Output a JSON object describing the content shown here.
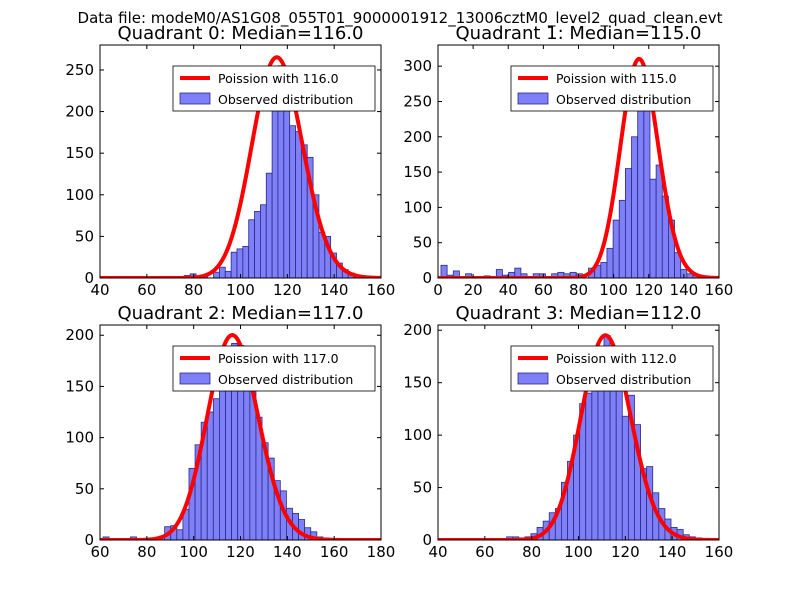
{
  "suptitle": "Data file: modeM0/AS1G08_055T01_9000001912_13006cztM0_level2_quad_clean.evt",
  "colors": {
    "bar_fill": "#7f7ff7",
    "bar_edge": "#2a2a8a",
    "curve": "#ff0000",
    "axis": "#000000"
  },
  "chart_data": [
    {
      "type": "bar",
      "title": "Quadrant 0: Median=116.0",
      "legend": [
        "Poission with 116.0",
        "Observed distribution"
      ],
      "legend_placement": "top-right",
      "xlim": [
        40,
        160
      ],
      "ylim": [
        0,
        280
      ],
      "xticks": [
        "40",
        "60",
        "80",
        "100",
        "120",
        "140",
        "160"
      ],
      "yticks": [
        "0",
        "50",
        "100",
        "150",
        "200",
        "250"
      ],
      "mean": 116,
      "curve_peak": 265,
      "bin_width": 2.5,
      "bins": [
        [
          76,
          3
        ],
        [
          78.5,
          5
        ],
        [
          83.5,
          2
        ],
        [
          88.5,
          7
        ],
        [
          91,
          13
        ],
        [
          93.5,
          8
        ],
        [
          96,
          31
        ],
        [
          98.5,
          35
        ],
        [
          101,
          38
        ],
        [
          103.5,
          70
        ],
        [
          106,
          80
        ],
        [
          108.5,
          88
        ],
        [
          111,
          126
        ],
        [
          113.5,
          230
        ],
        [
          116,
          255
        ],
        [
          118.5,
          230
        ],
        [
          121,
          183
        ],
        [
          123.5,
          176
        ],
        [
          126,
          160
        ],
        [
          128.5,
          145
        ],
        [
          131,
          100
        ],
        [
          133.5,
          55
        ],
        [
          136,
          50
        ],
        [
          138.5,
          30
        ],
        [
          141,
          18
        ],
        [
          143.5,
          10
        ],
        [
          146,
          6
        ],
        [
          148.5,
          3
        ]
      ]
    },
    {
      "type": "bar",
      "title": "Quadrant 1: Median=115.0",
      "legend": [
        "Poission with 115.0",
        "Observed distribution"
      ],
      "legend_placement": "top-right",
      "xlim": [
        0,
        160
      ],
      "ylim": [
        0,
        330
      ],
      "xticks": [
        "0",
        "20",
        "40",
        "60",
        "80",
        "100",
        "120",
        "140",
        "160"
      ],
      "yticks": [
        "0",
        "50",
        "100",
        "150",
        "200",
        "250",
        "300"
      ],
      "mean": 115,
      "curve_peak": 310,
      "bin_width": 3.5,
      "bins": [
        [
          1.7,
          18
        ],
        [
          5.2,
          4
        ],
        [
          8.7,
          10
        ],
        [
          15.7,
          6
        ],
        [
          26.2,
          3
        ],
        [
          33.2,
          12
        ],
        [
          36.7,
          4
        ],
        [
          40.2,
          8
        ],
        [
          43.7,
          14
        ],
        [
          47.2,
          6
        ],
        [
          54.2,
          6
        ],
        [
          57.7,
          6
        ],
        [
          64.7,
          6
        ],
        [
          68.2,
          8
        ],
        [
          71.7,
          6
        ],
        [
          75.2,
          8
        ],
        [
          78.7,
          6
        ],
        [
          85.7,
          14
        ],
        [
          89.2,
          18
        ],
        [
          92.7,
          22
        ],
        [
          96.2,
          42
        ],
        [
          99.7,
          82
        ],
        [
          103.2,
          110
        ],
        [
          106.7,
          155
        ],
        [
          110.2,
          200
        ],
        [
          113.7,
          280
        ],
        [
          117.2,
          250
        ],
        [
          120.7,
          140
        ],
        [
          124.2,
          160
        ],
        [
          127.7,
          116
        ],
        [
          131.2,
          82
        ],
        [
          134.7,
          36
        ],
        [
          138.2,
          12
        ],
        [
          141.7,
          6
        ],
        [
          145.2,
          4
        ]
      ]
    },
    {
      "type": "bar",
      "title": "Quadrant 2: Median=117.0",
      "legend": [
        "Poission with 117.0",
        "Observed distribution"
      ],
      "legend_placement": "top-right",
      "xlim": [
        60,
        180
      ],
      "ylim": [
        0,
        210
      ],
      "xticks": [
        "60",
        "80",
        "100",
        "120",
        "140",
        "160",
        "180"
      ],
      "yticks": [
        "0",
        "50",
        "100",
        "150",
        "200"
      ],
      "mean": 117,
      "curve_peak": 200,
      "bin_width": 2.6,
      "bins": [
        [
          61.3,
          3
        ],
        [
          73,
          3
        ],
        [
          85,
          3
        ],
        [
          87.6,
          13
        ],
        [
          90.2,
          14
        ],
        [
          92.8,
          10
        ],
        [
          95.4,
          30
        ],
        [
          98,
          70
        ],
        [
          100.6,
          93
        ],
        [
          103.2,
          115
        ],
        [
          105.8,
          125
        ],
        [
          108.4,
          138
        ],
        [
          111,
          148
        ],
        [
          113.6,
          160
        ],
        [
          116.2,
          192
        ],
        [
          118.8,
          190
        ],
        [
          121.4,
          180
        ],
        [
          124,
          155
        ],
        [
          126.6,
          120
        ],
        [
          129.2,
          95
        ],
        [
          131.8,
          80
        ],
        [
          134.4,
          58
        ],
        [
          137,
          48
        ],
        [
          139.6,
          31
        ],
        [
          142.2,
          26
        ],
        [
          144.8,
          20
        ],
        [
          147.4,
          12
        ],
        [
          150,
          8
        ],
        [
          152.6,
          3
        ],
        [
          155.2,
          2
        ]
      ]
    },
    {
      "type": "bar",
      "title": "Quadrant 3: Median=112.0",
      "legend": [
        "Poission with 112.0",
        "Observed distribution"
      ],
      "legend_placement": "top-right",
      "xlim": [
        40,
        160
      ],
      "ylim": [
        0,
        205
      ],
      "xticks": [
        "40",
        "60",
        "80",
        "100",
        "120",
        "140",
        "160"
      ],
      "yticks": [
        "0",
        "50",
        "100",
        "150",
        "200"
      ],
      "mean": 112,
      "curve_peak": 195,
      "bin_width": 2.6,
      "bins": [
        [
          69.3,
          3
        ],
        [
          71.9,
          3
        ],
        [
          74.5,
          2
        ],
        [
          77.1,
          3
        ],
        [
          79.7,
          6
        ],
        [
          82.3,
          12
        ],
        [
          84.9,
          18
        ],
        [
          87.5,
          26
        ],
        [
          90.1,
          30
        ],
        [
          92.7,
          55
        ],
        [
          95.3,
          75
        ],
        [
          97.9,
          100
        ],
        [
          100.5,
          130
        ],
        [
          103.1,
          140
        ],
        [
          105.7,
          155
        ],
        [
          108.3,
          172
        ],
        [
          110.9,
          195
        ],
        [
          113.5,
          150
        ],
        [
          116.1,
          175
        ],
        [
          118.7,
          118
        ],
        [
          121.3,
          138
        ],
        [
          123.9,
          110
        ],
        [
          126.5,
          68
        ],
        [
          129.1,
          70
        ],
        [
          131.7,
          45
        ],
        [
          134.3,
          30
        ],
        [
          136.9,
          20
        ],
        [
          139.5,
          12
        ],
        [
          142.1,
          10
        ],
        [
          144.7,
          5
        ],
        [
          147.3,
          3
        ],
        [
          149.9,
          2
        ]
      ]
    }
  ]
}
